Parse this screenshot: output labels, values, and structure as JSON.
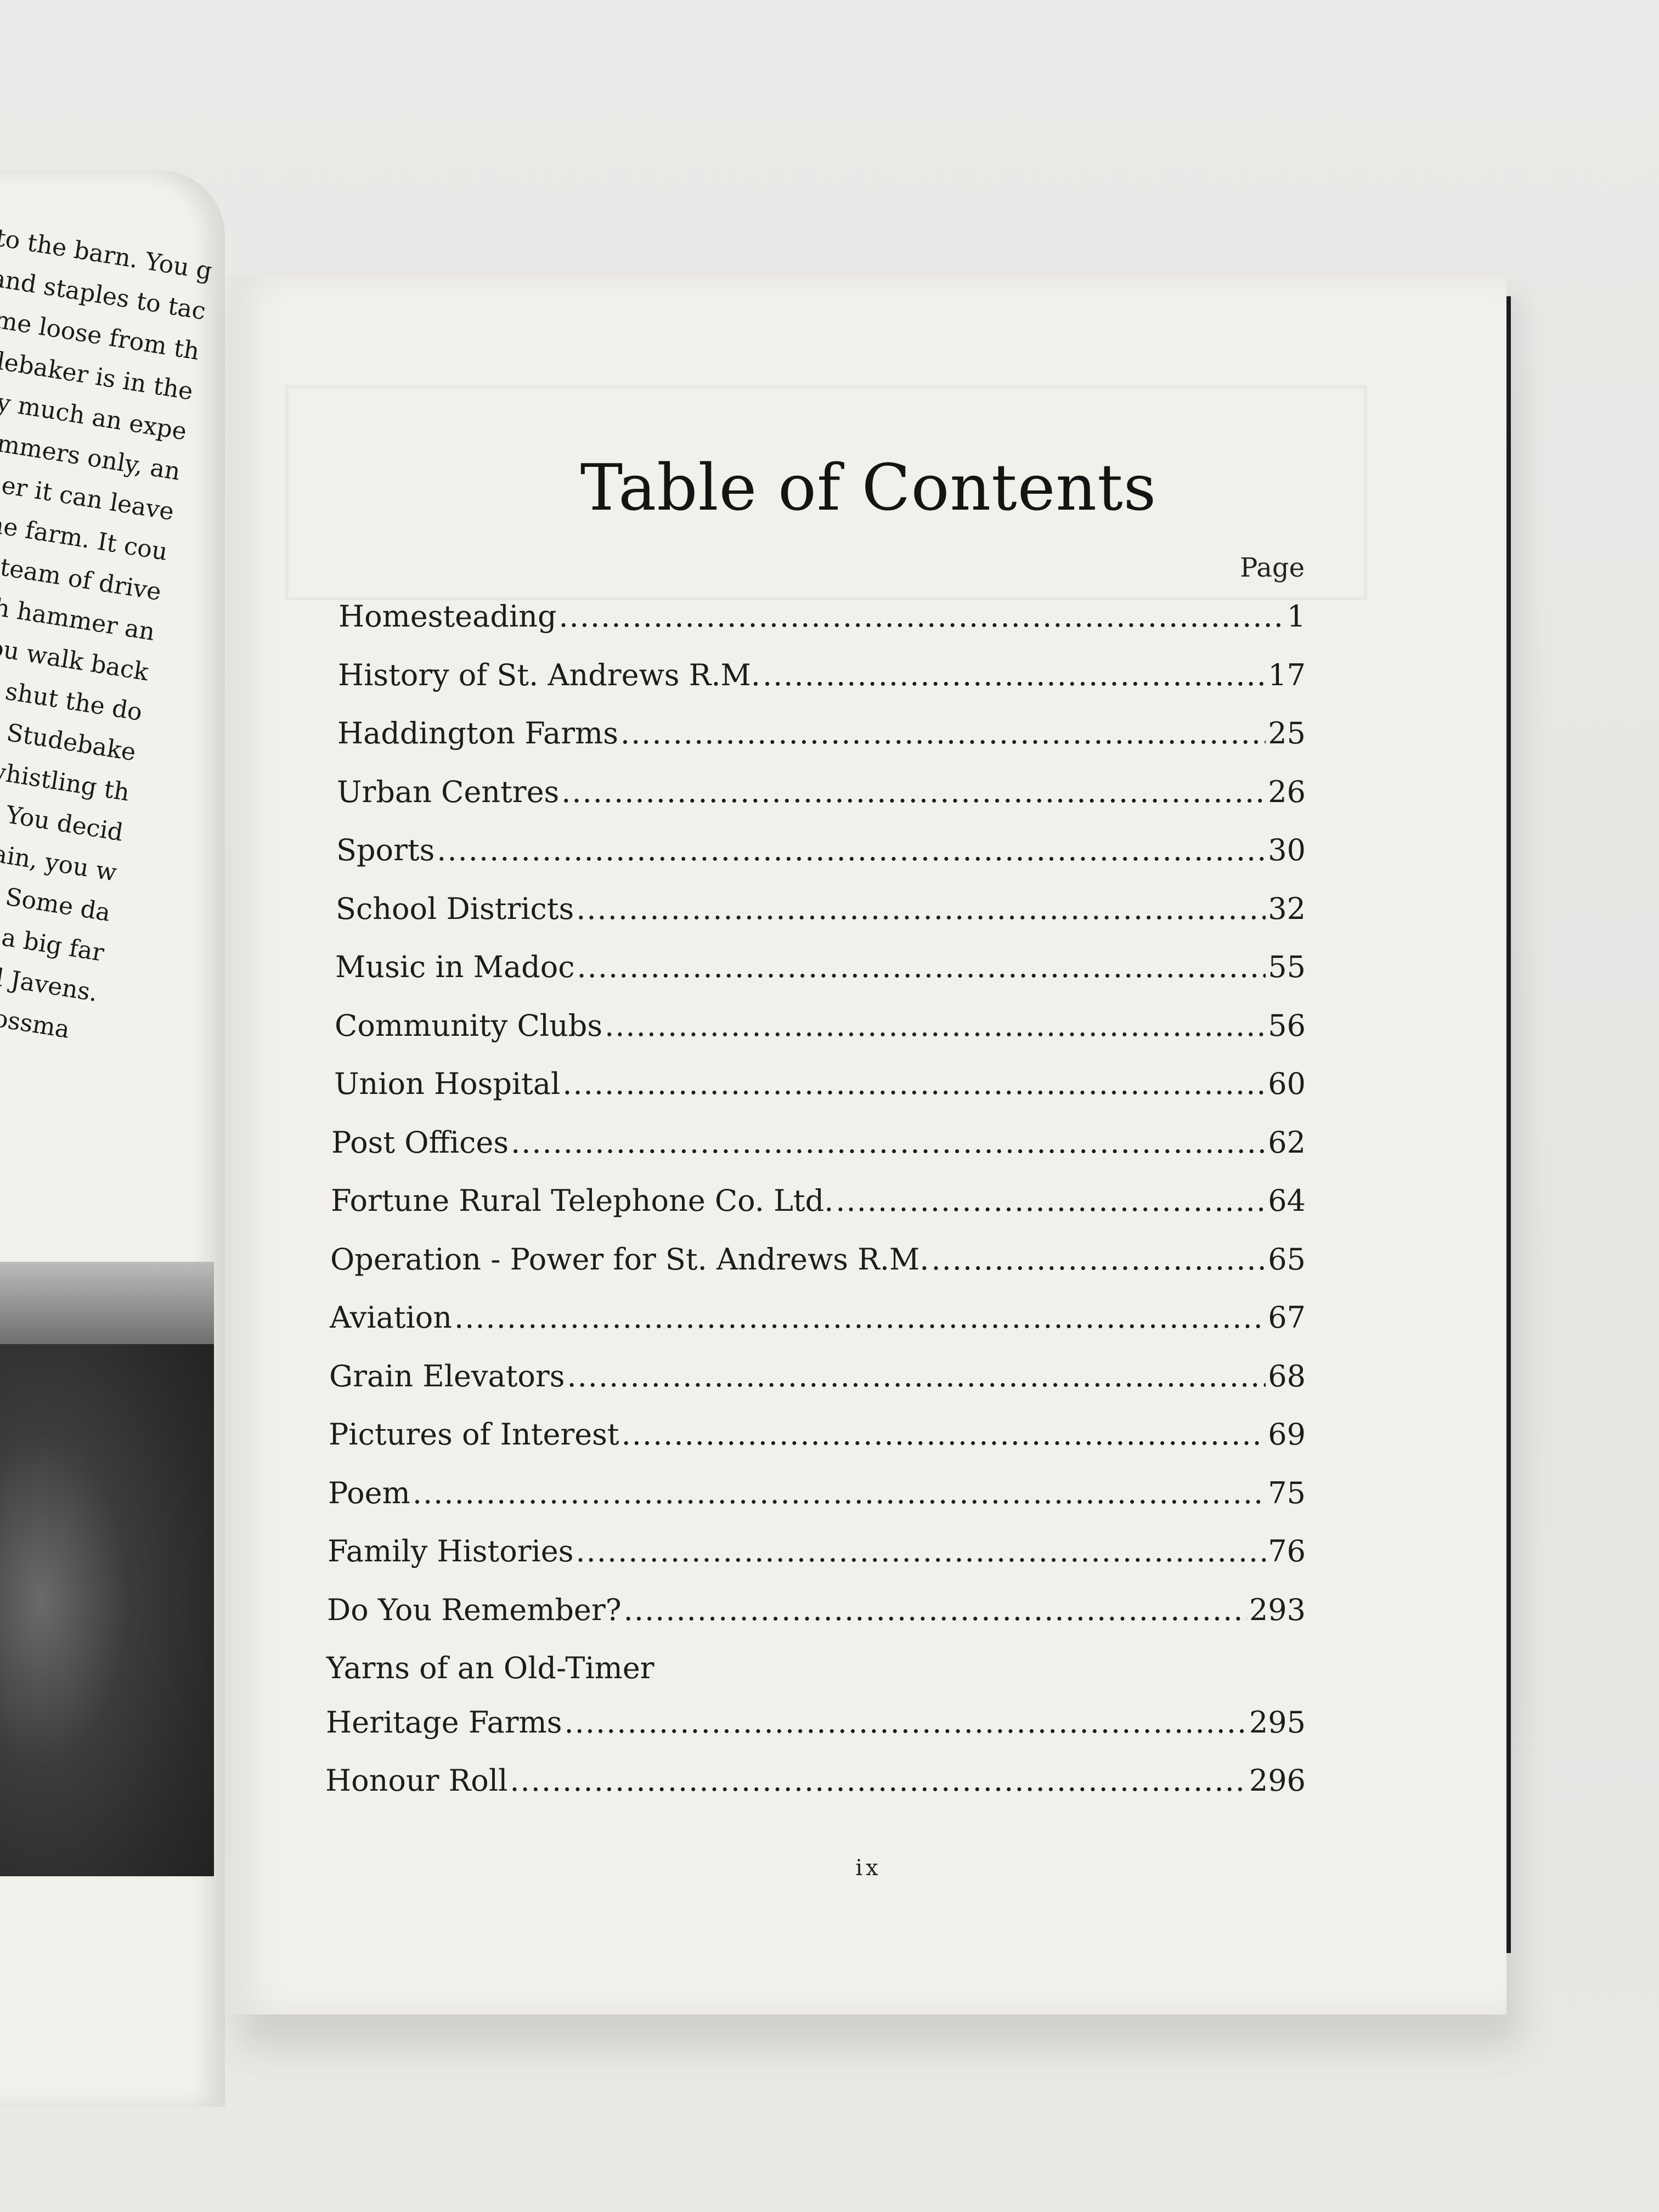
{
  "left_page": {
    "lines": [
      "ake her to the barn. You g",
      "ammer and staples to tac",
      "has come loose from th",
      "nger Studebaker is in the",
      "It is pretty much an expe",
      "is for summers only, an",
      "in summer it can leave",
      "n and the farm. It cou",
      "Babe or a team of drive",
      "lk out with hammer an",
      "minute. You walk back",
      "ner. As you shut the do",
      "most useless Studebake",
      "find yourself whistling th",
      "Buggy Ride\". You decid",
      "ich seems certain, you w",
      "ould be a start. Some da",
      "d like to have a big far",
      "s — like Phil Javens.",
      "L. G. Crossma"
    ]
  },
  "toc": {
    "title": "Table of Contents",
    "page_header": "Page",
    "entries": [
      {
        "label": "Homesteading",
        "page": "1"
      },
      {
        "label": "History of St. Andrews R.M.",
        "page": "17"
      },
      {
        "label": "Haddington Farms",
        "page": "25"
      },
      {
        "label": "Urban Centres",
        "page": "26"
      },
      {
        "label": "Sports",
        "page": "30"
      },
      {
        "label": "School Districts",
        "page": "32"
      },
      {
        "label": "Music in Madoc",
        "page": "55"
      },
      {
        "label": "Community Clubs",
        "page": "56"
      },
      {
        "label": "Union Hospital",
        "page": "60"
      },
      {
        "label": "Post Offices",
        "page": "62"
      },
      {
        "label": "Fortune Rural Telephone Co. Ltd.",
        "page": "64"
      },
      {
        "label": "Operation - Power for St. Andrews R.M.",
        "page": "65"
      },
      {
        "label": "Aviation",
        "page": "67"
      },
      {
        "label": "Grain Elevators",
        "page": "68"
      },
      {
        "label": "Pictures of Interest",
        "page": "69"
      },
      {
        "label": "Poem",
        "page": "75"
      },
      {
        "label": "Family Histories",
        "page": "76"
      },
      {
        "label": "Do You Remember?",
        "page": "293"
      },
      {
        "label": "Yarns of an Old-Timer",
        "page": ""
      },
      {
        "label": "Heritage Farms",
        "page": "295"
      },
      {
        "label": "Honour Roll",
        "page": "296"
      }
    ],
    "folio": "ix"
  }
}
